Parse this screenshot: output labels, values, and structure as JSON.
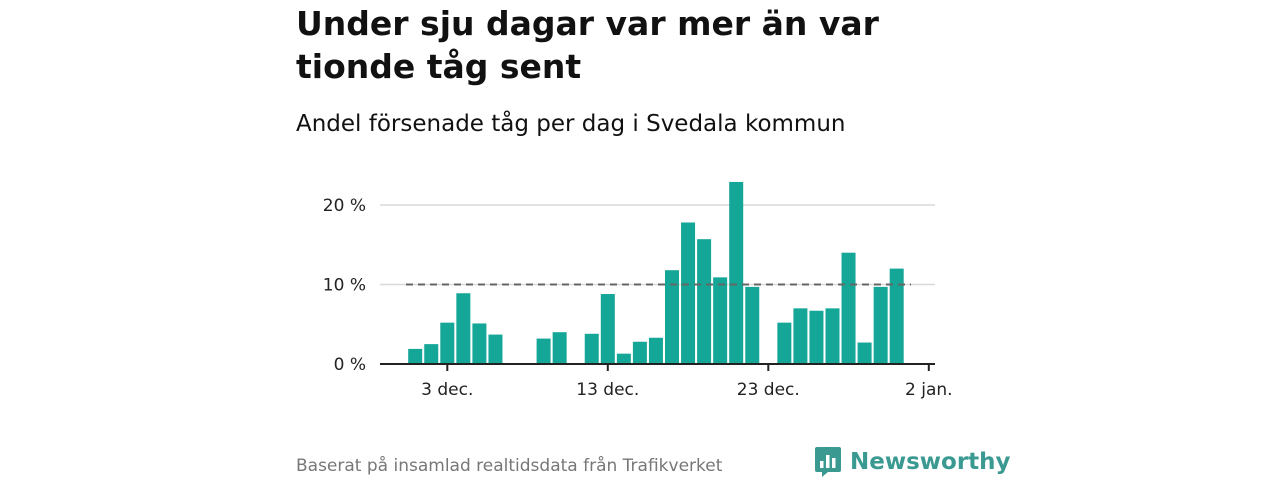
{
  "title": "Under sju dagar var mer än var tionde tåg sent",
  "subtitle": "Andel försenade tåg per dag i Svedala kommun",
  "source": "Baserat på insamlad realtidsdata från Trafikverket",
  "brand": {
    "name": "Newsworthy",
    "icon": "newsworthy-logo-icon"
  },
  "colors": {
    "bar": "#14a697",
    "grid": "#d9d9d9",
    "reference": "#666666",
    "axis": "#222222",
    "brand": "#3a9a92"
  },
  "chart_data": {
    "type": "bar",
    "x_start_day": 1,
    "x": [
      "1 dec.",
      "2 dec.",
      "3 dec.",
      "4 dec.",
      "5 dec.",
      "6 dec.",
      "7 dec.",
      "8 dec.",
      "9 dec.",
      "10 dec.",
      "11 dec.",
      "12 dec.",
      "13 dec.",
      "14 dec.",
      "15 dec.",
      "16 dec.",
      "17 dec.",
      "18 dec.",
      "19 dec.",
      "20 dec.",
      "21 dec.",
      "22 dec.",
      "23 dec.",
      "24 dec.",
      "25 dec.",
      "26 dec.",
      "27 dec.",
      "28 dec.",
      "29 dec.",
      "30 dec.",
      "31 dec."
    ],
    "values": [
      1.9,
      2.5,
      5.2,
      8.9,
      5.1,
      3.7,
      null,
      null,
      3.2,
      4.0,
      null,
      3.8,
      8.8,
      1.3,
      2.8,
      3.3,
      11.8,
      17.8,
      15.7,
      10.9,
      22.9,
      9.7,
      null,
      5.2,
      7.0,
      6.7,
      7.0,
      14.0,
      2.7,
      9.7,
      12.0
    ],
    "ylim": [
      0,
      20
    ],
    "yticks": [
      0,
      10,
      20
    ],
    "ytick_labels": [
      "0 %",
      "10 %",
      "20 %"
    ],
    "xticks": [
      3,
      13,
      23,
      33
    ],
    "xtick_labels": [
      "3 dec.",
      "13 dec.",
      "23 dec.",
      "2 jan."
    ],
    "reference_line": 10,
    "grid": true
  }
}
